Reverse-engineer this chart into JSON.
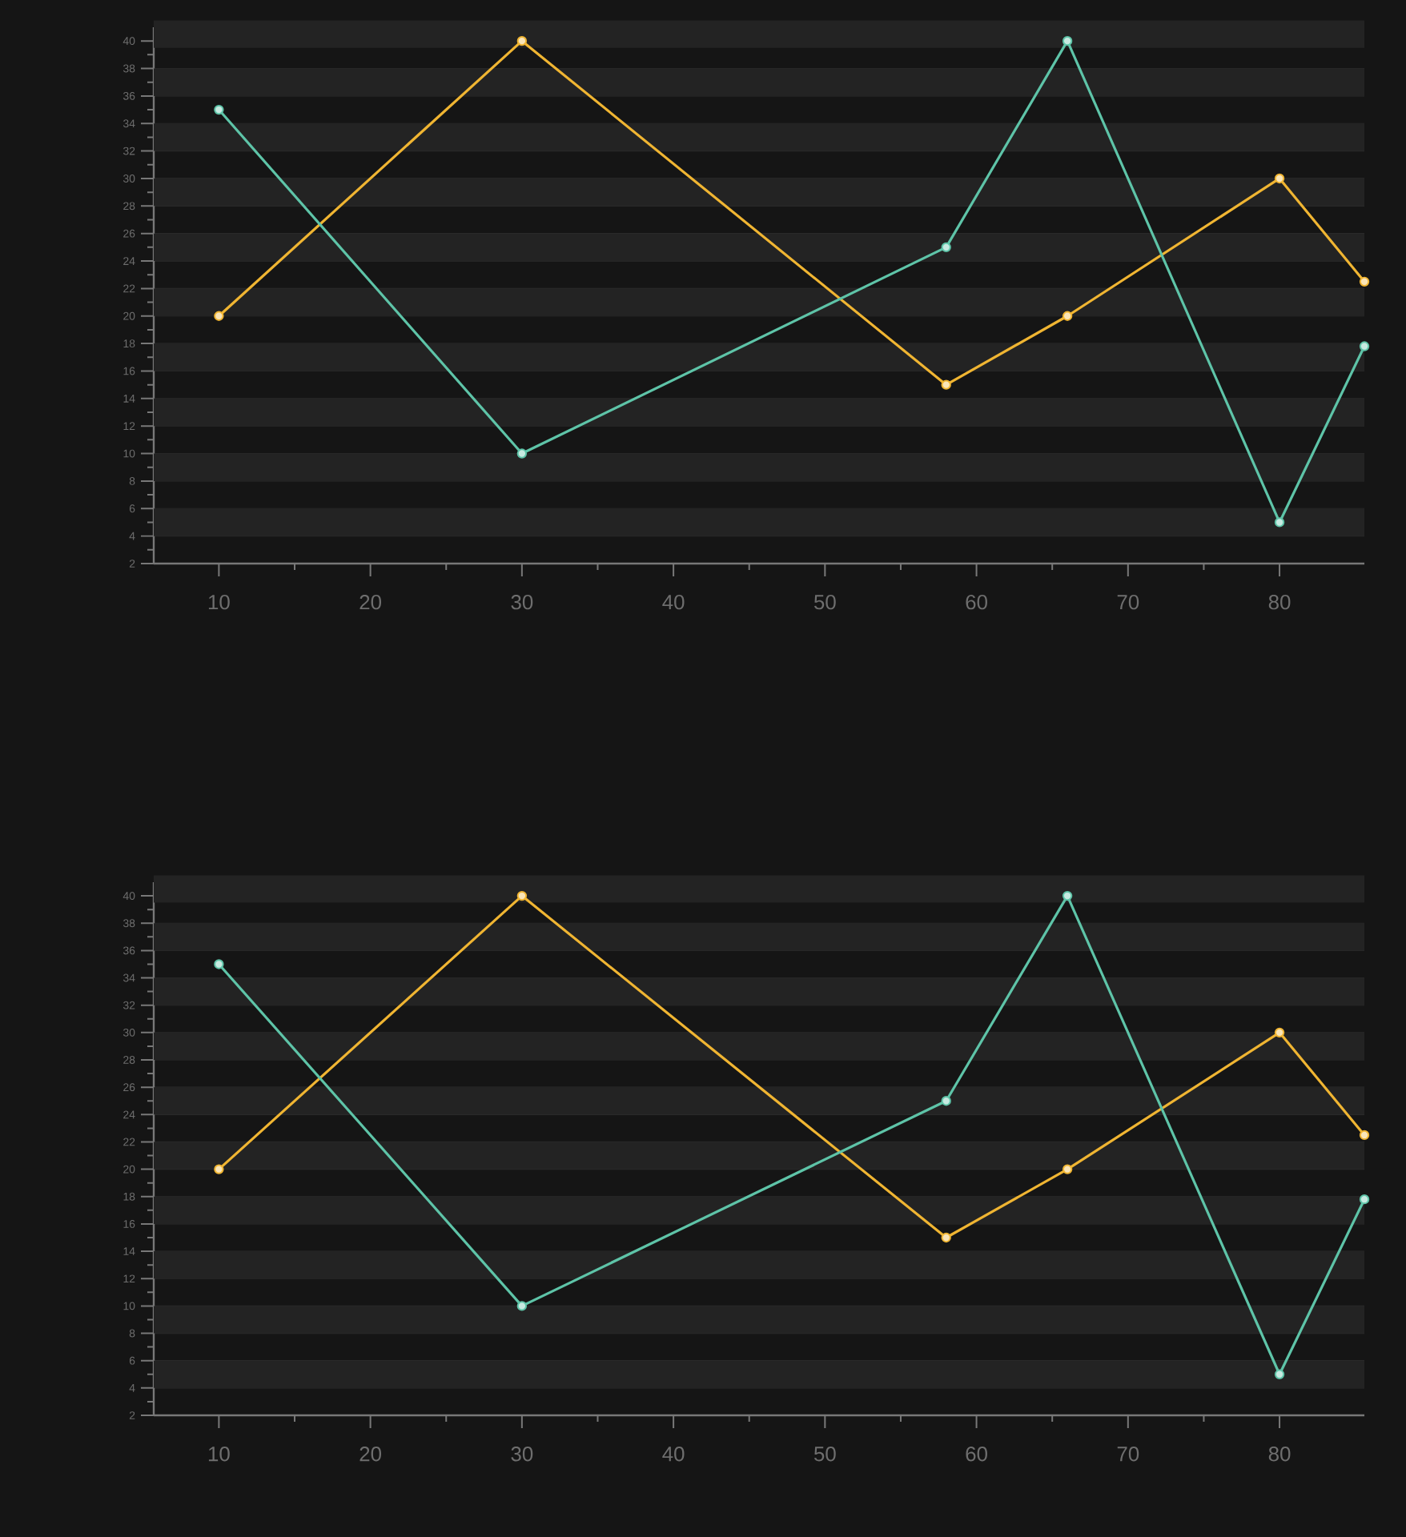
{
  "chart_data": [
    {
      "type": "line",
      "x": [
        10,
        30,
        58,
        66,
        80,
        85.6
      ],
      "xlim": [
        5.7,
        85.6
      ],
      "ylim": [
        2,
        41
      ],
      "xticks": [
        10,
        20,
        30,
        40,
        50,
        60,
        70,
        80
      ],
      "yticks": [
        2,
        4,
        6,
        8,
        10,
        12,
        14,
        16,
        18,
        20,
        22,
        24,
        26,
        28,
        30,
        32,
        34,
        36,
        38,
        40
      ],
      "grid": "y",
      "marker": "circle",
      "line_style": "solid",
      "series": [
        {
          "color": "#f0b532",
          "values": [
            20,
            40,
            15,
            20,
            30,
            22.5
          ]
        },
        {
          "color": "#5ec4a8",
          "values": [
            35,
            10,
            25,
            40,
            5,
            17.8
          ]
        }
      ]
    },
    {
      "type": "line",
      "x": [
        10,
        30,
        58,
        66,
        80,
        85.6
      ],
      "xlim": [
        5.7,
        85.6
      ],
      "ylim": [
        2,
        41
      ],
      "xticks": [
        10,
        20,
        30,
        40,
        50,
        60,
        70,
        80
      ],
      "yticks": [
        2,
        4,
        6,
        8,
        10,
        12,
        14,
        16,
        18,
        20,
        22,
        24,
        26,
        28,
        30,
        32,
        34,
        36,
        38,
        40
      ],
      "grid": "y",
      "marker": "circle",
      "line_style": "solid",
      "series": [
        {
          "color": "#f0b532",
          "values": [
            20,
            40,
            15,
            20,
            30,
            22.5
          ]
        },
        {
          "color": "#5ec4a8",
          "values": [
            35,
            10,
            25,
            40,
            5,
            17.8
          ]
        }
      ]
    }
  ]
}
